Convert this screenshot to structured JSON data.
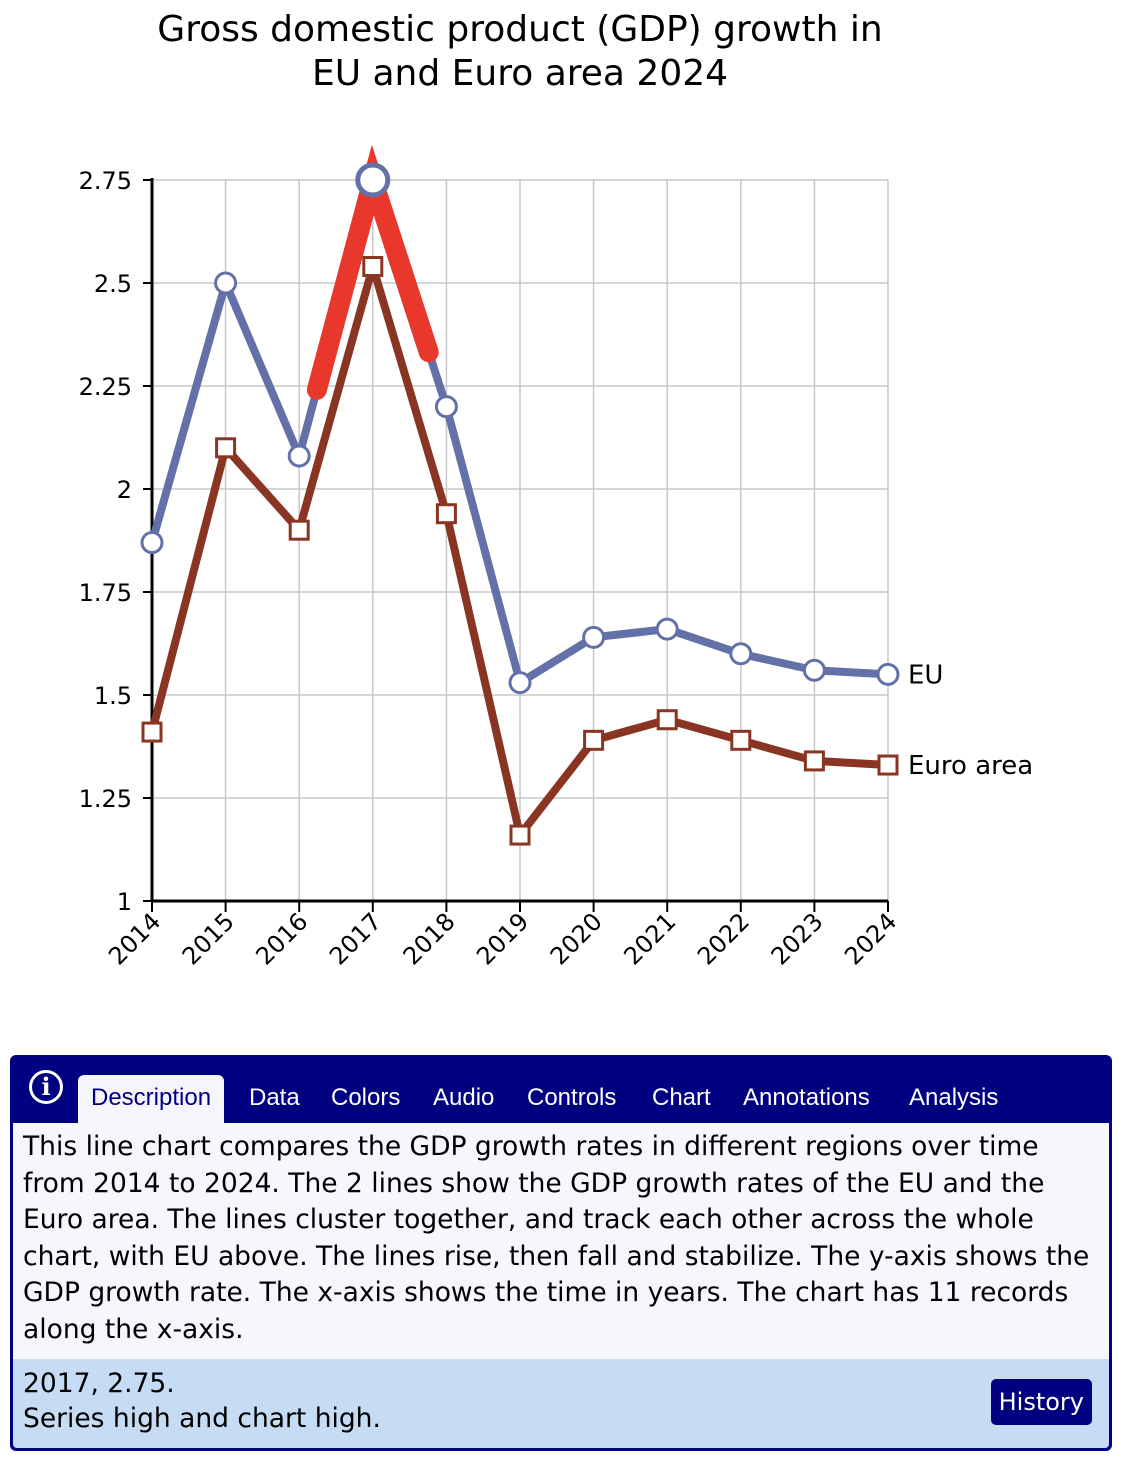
{
  "chart_data": {
    "type": "line",
    "title_lines": [
      "Gross domestic product (GDP) growth in",
      "EU and Euro area 2024"
    ],
    "xlabel": "",
    "ylabel": "",
    "categories": [
      "2014",
      "2015",
      "2016",
      "2017",
      "2018",
      "2019",
      "2020",
      "2021",
      "2022",
      "2023",
      "2024"
    ],
    "ylim": [
      1,
      2.75
    ],
    "yticks": [
      1,
      1.25,
      1.5,
      1.75,
      2,
      2.25,
      2.5,
      2.75
    ],
    "ytick_labels": [
      "1",
      "1.25",
      "1.5",
      "1.75",
      "2",
      "2.25",
      "2.5",
      "2.75"
    ],
    "grid": true,
    "legend": "inline labels at line ends (right)",
    "series": [
      {
        "name": "EU",
        "color": "#6371a8",
        "marker": "circle",
        "values": [
          1.87,
          2.5,
          2.08,
          2.75,
          2.2,
          1.53,
          1.64,
          1.66,
          1.6,
          1.56,
          1.55
        ]
      },
      {
        "name": "Euro area",
        "color": "#8a3523",
        "marker": "square",
        "values": [
          1.41,
          2.1,
          1.9,
          2.54,
          1.94,
          1.16,
          1.39,
          1.44,
          1.39,
          1.34,
          1.33
        ]
      }
    ],
    "highlight": {
      "series": "EU",
      "index": 3,
      "color": "#e8382b"
    }
  },
  "panel": {
    "info_icon": "info-icon",
    "tabs": [
      "Description",
      "Data",
      "Colors",
      "Audio",
      "Controls",
      "Chart",
      "Annotations",
      "Analysis"
    ],
    "active_tab": "Description",
    "description": "This line chart compares the GDP growth rates in different regions over time from 2014 to 2024. The 2 lines show the GDP growth rates of the EU and the Euro area. The lines cluster together, and track each other across the whole chart, with EU above. The lines rise, then fall and stabilize. The y-axis shows the GDP growth rate. The x-axis shows the time in years. The chart has 11 records along the x-axis.",
    "status_line1": "2017, 2.75.",
    "status_line2": "Series high and chart high.",
    "history_label": "History",
    "colors": {
      "panel": "#000080",
      "description_bg": "#f6f6fc",
      "status_bg": "#c6dcf5"
    }
  }
}
